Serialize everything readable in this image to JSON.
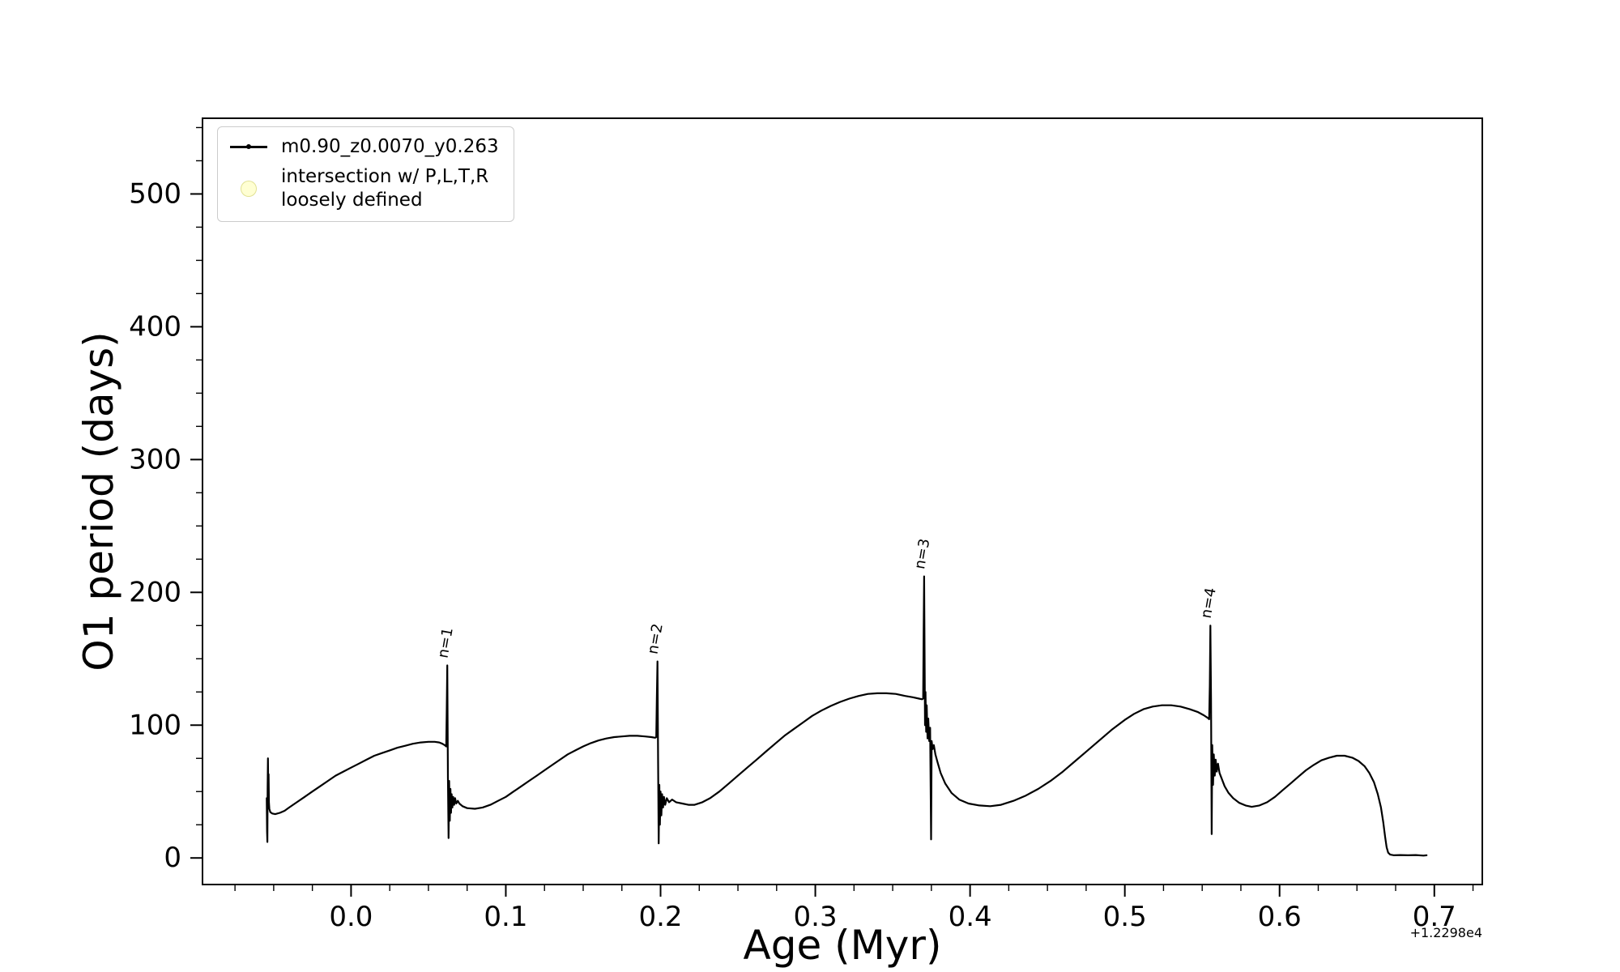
{
  "figure": {
    "background": "#ffffff",
    "line_color": "#000000",
    "legend_border_color": "#cccccc",
    "intersection_marker_color": "rgba(255,255,130,0.35)"
  },
  "chart_data": {
    "type": "line",
    "title": "",
    "xlabel": "Age (Myr)",
    "ylabel": "O1 period (days)",
    "x_offset_text": "+1.2298e4",
    "xlim": [
      -0.096,
      0.731
    ],
    "ylim": [
      -20,
      557
    ],
    "grid": false,
    "legend_position": "upper left",
    "xtick_values": [
      0.0,
      0.1,
      0.2,
      0.3,
      0.4,
      0.5,
      0.6,
      0.7
    ],
    "xtick_labels": [
      "0.0",
      "0.1",
      "0.2",
      "0.3",
      "0.4",
      "0.5",
      "0.6",
      "0.7"
    ],
    "ytick_values": [
      0,
      100,
      200,
      300,
      400,
      500
    ],
    "ytick_labels": [
      "0",
      "100",
      "200",
      "300",
      "400",
      "500"
    ],
    "x_minor_step": 0.025,
    "y_minor_step": 25,
    "legend_intersection_label": "intersection w/ P,L,T,R\nloosely defined",
    "annotations": [
      {
        "label": "n=1",
        "x": 0.0622,
        "y": 150,
        "rotation": -80
      },
      {
        "label": "n=2",
        "x": 0.1978,
        "y": 153,
        "rotation": -80
      },
      {
        "label": "n=3",
        "x": 0.3703,
        "y": 217,
        "rotation": -80
      },
      {
        "label": "n=4",
        "x": 0.5553,
        "y": 180,
        "rotation": -80
      }
    ],
    "series": [
      {
        "name": "m0.90_z0.0070_y0.263",
        "color": "#000000",
        "marker": "point",
        "points": [
          [
            -0.0545,
            45
          ],
          [
            -0.0543,
            20
          ],
          [
            -0.0541,
            12
          ],
          [
            -0.0539,
            52
          ],
          [
            -0.0537,
            75
          ],
          [
            -0.0535,
            50
          ],
          [
            -0.0533,
            63
          ],
          [
            -0.0531,
            42
          ],
          [
            -0.0528,
            37
          ],
          [
            -0.0522,
            34.5
          ],
          [
            -0.051,
            33.5
          ],
          [
            -0.049,
            33
          ],
          [
            -0.046,
            34
          ],
          [
            -0.043,
            35.5
          ],
          [
            -0.04,
            38
          ],
          [
            -0.035,
            42
          ],
          [
            -0.03,
            46
          ],
          [
            -0.025,
            50
          ],
          [
            -0.02,
            54
          ],
          [
            -0.015,
            58
          ],
          [
            -0.01,
            62
          ],
          [
            -0.005,
            65
          ],
          [
            0.0,
            68
          ],
          [
            0.005,
            71
          ],
          [
            0.01,
            74
          ],
          [
            0.015,
            77
          ],
          [
            0.02,
            79
          ],
          [
            0.025,
            81
          ],
          [
            0.03,
            83
          ],
          [
            0.035,
            84.5
          ],
          [
            0.04,
            86
          ],
          [
            0.045,
            87
          ],
          [
            0.05,
            87.5
          ],
          [
            0.054,
            87.5
          ],
          [
            0.057,
            87
          ],
          [
            0.059,
            86
          ],
          [
            0.0605,
            85
          ],
          [
            0.0615,
            84
          ],
          [
            0.0618,
            110
          ],
          [
            0.0622,
            145
          ],
          [
            0.0626,
            60
          ],
          [
            0.063,
            15
          ],
          [
            0.0634,
            58
          ],
          [
            0.0638,
            28
          ],
          [
            0.0642,
            52
          ],
          [
            0.0646,
            34
          ],
          [
            0.065,
            48
          ],
          [
            0.0655,
            38
          ],
          [
            0.066,
            46
          ],
          [
            0.0666,
            40
          ],
          [
            0.0672,
            45
          ],
          [
            0.068,
            41
          ],
          [
            0.069,
            43
          ],
          [
            0.07,
            41
          ],
          [
            0.072,
            39
          ],
          [
            0.075,
            37.5
          ],
          [
            0.08,
            37
          ],
          [
            0.085,
            38
          ],
          [
            0.09,
            40
          ],
          [
            0.095,
            43
          ],
          [
            0.1,
            46
          ],
          [
            0.105,
            50
          ],
          [
            0.11,
            54
          ],
          [
            0.115,
            58
          ],
          [
            0.12,
            62
          ],
          [
            0.125,
            66
          ],
          [
            0.13,
            70
          ],
          [
            0.135,
            74
          ],
          [
            0.14,
            78
          ],
          [
            0.145,
            81
          ],
          [
            0.15,
            84
          ],
          [
            0.155,
            86.5
          ],
          [
            0.16,
            88.5
          ],
          [
            0.165,
            90
          ],
          [
            0.17,
            91
          ],
          [
            0.175,
            91.5
          ],
          [
            0.18,
            92
          ],
          [
            0.185,
            92
          ],
          [
            0.19,
            91.5
          ],
          [
            0.194,
            91
          ],
          [
            0.1965,
            90.5
          ],
          [
            0.1972,
            91
          ],
          [
            0.1976,
            120
          ],
          [
            0.198,
            148
          ],
          [
            0.1984,
            70
          ],
          [
            0.1988,
            11
          ],
          [
            0.1992,
            55
          ],
          [
            0.1996,
            25
          ],
          [
            0.2,
            50
          ],
          [
            0.2005,
            32
          ],
          [
            0.201,
            48
          ],
          [
            0.2016,
            38
          ],
          [
            0.2022,
            46
          ],
          [
            0.203,
            40
          ],
          [
            0.204,
            45
          ],
          [
            0.2055,
            42
          ],
          [
            0.2075,
            44
          ],
          [
            0.21,
            42
          ],
          [
            0.214,
            41
          ],
          [
            0.218,
            40
          ],
          [
            0.222,
            40
          ],
          [
            0.227,
            42
          ],
          [
            0.232,
            45
          ],
          [
            0.238,
            50
          ],
          [
            0.244,
            56
          ],
          [
            0.25,
            62
          ],
          [
            0.256,
            68
          ],
          [
            0.262,
            74
          ],
          [
            0.268,
            80
          ],
          [
            0.274,
            86
          ],
          [
            0.28,
            92
          ],
          [
            0.286,
            97
          ],
          [
            0.292,
            102
          ],
          [
            0.298,
            107
          ],
          [
            0.304,
            111
          ],
          [
            0.31,
            114.5
          ],
          [
            0.316,
            117.5
          ],
          [
            0.322,
            120
          ],
          [
            0.328,
            122
          ],
          [
            0.334,
            123.5
          ],
          [
            0.34,
            124
          ],
          [
            0.346,
            124
          ],
          [
            0.352,
            123.5
          ],
          [
            0.358,
            122
          ],
          [
            0.363,
            121
          ],
          [
            0.367,
            120
          ],
          [
            0.369,
            119.5
          ],
          [
            0.3697,
            120
          ],
          [
            0.37,
            170
          ],
          [
            0.3703,
            212
          ],
          [
            0.3706,
            160
          ],
          [
            0.3709,
            100
          ],
          [
            0.3712,
            125
          ],
          [
            0.3716,
            95
          ],
          [
            0.372,
            115
          ],
          [
            0.3725,
            90
          ],
          [
            0.373,
            105
          ],
          [
            0.3736,
            88
          ],
          [
            0.3742,
            98
          ],
          [
            0.3748,
            14
          ],
          [
            0.3752,
            88
          ],
          [
            0.3758,
            82
          ],
          [
            0.3766,
            85
          ],
          [
            0.3776,
            78
          ],
          [
            0.379,
            72
          ],
          [
            0.381,
            64
          ],
          [
            0.384,
            56
          ],
          [
            0.388,
            49
          ],
          [
            0.393,
            44
          ],
          [
            0.399,
            41
          ],
          [
            0.406,
            39.5
          ],
          [
            0.413,
            39
          ],
          [
            0.42,
            40
          ],
          [
            0.428,
            43
          ],
          [
            0.436,
            47
          ],
          [
            0.444,
            52
          ],
          [
            0.452,
            58
          ],
          [
            0.46,
            65
          ],
          [
            0.468,
            73
          ],
          [
            0.476,
            81
          ],
          [
            0.484,
            89
          ],
          [
            0.492,
            97
          ],
          [
            0.5,
            104
          ],
          [
            0.506,
            108.5
          ],
          [
            0.512,
            112
          ],
          [
            0.518,
            114
          ],
          [
            0.524,
            115
          ],
          [
            0.53,
            115
          ],
          [
            0.536,
            114
          ],
          [
            0.542,
            112
          ],
          [
            0.547,
            110
          ],
          [
            0.551,
            107.5
          ],
          [
            0.5535,
            105.5
          ],
          [
            0.5545,
            104.5
          ],
          [
            0.5549,
            130
          ],
          [
            0.5553,
            175
          ],
          [
            0.5557,
            120
          ],
          [
            0.5561,
            18
          ],
          [
            0.5565,
            85
          ],
          [
            0.557,
            55
          ],
          [
            0.5575,
            78
          ],
          [
            0.5581,
            62
          ],
          [
            0.5587,
            74
          ],
          [
            0.5594,
            65
          ],
          [
            0.5602,
            71
          ],
          [
            0.5612,
            64
          ],
          [
            0.5625,
            60
          ],
          [
            0.5645,
            54
          ],
          [
            0.567,
            49
          ],
          [
            0.57,
            45
          ],
          [
            0.574,
            41.5
          ],
          [
            0.578,
            39.5
          ],
          [
            0.582,
            38.5
          ],
          [
            0.587,
            39.5
          ],
          [
            0.592,
            42
          ],
          [
            0.597,
            46
          ],
          [
            0.602,
            51
          ],
          [
            0.607,
            56
          ],
          [
            0.612,
            61
          ],
          [
            0.617,
            66
          ],
          [
            0.622,
            70
          ],
          [
            0.627,
            73.5
          ],
          [
            0.632,
            75.5
          ],
          [
            0.637,
            77
          ],
          [
            0.642,
            77
          ],
          [
            0.647,
            75.5
          ],
          [
            0.651,
            73
          ],
          [
            0.655,
            69
          ],
          [
            0.658,
            64
          ],
          [
            0.661,
            57
          ],
          [
            0.6635,
            48
          ],
          [
            0.6655,
            38
          ],
          [
            0.667,
            27
          ],
          [
            0.6682,
            16
          ],
          [
            0.6692,
            8
          ],
          [
            0.6702,
            4
          ],
          [
            0.6715,
            2.5
          ],
          [
            0.674,
            2
          ],
          [
            0.678,
            2.2
          ],
          [
            0.683,
            2
          ],
          [
            0.688,
            2.2
          ],
          [
            0.693,
            1.8
          ],
          [
            0.695,
            2
          ]
        ]
      }
    ]
  }
}
